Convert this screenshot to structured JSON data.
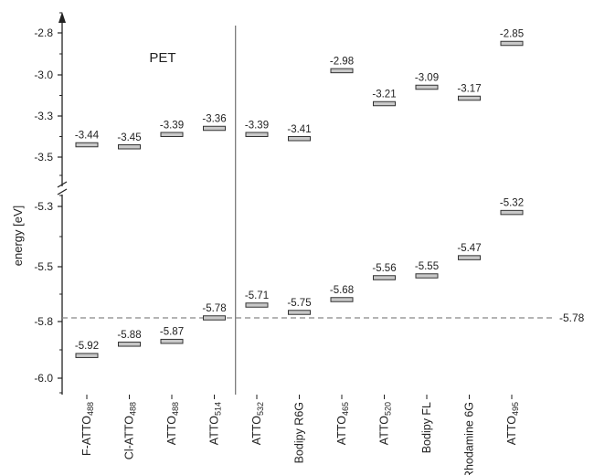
{
  "chart_data": {
    "type": "energy-level",
    "ylabel": "energy [eV]",
    "annotation": "PET",
    "reference_line": {
      "value": -5.78,
      "label": "-5.78"
    },
    "yaxis_segments": [
      {
        "range": [
          -3.55,
          -2.72
        ],
        "ticks": [
          "-2.8",
          "-3.0",
          "-3.3",
          "-3.5"
        ],
        "tick_values": [
          -2.8,
          -3.0,
          -3.3,
          -3.5
        ]
      },
      {
        "range": [
          -6.08,
          -5.22
        ],
        "ticks": [
          "-5.3",
          "-5.5",
          "-5.8",
          "-6.0"
        ],
        "tick_values": [
          -5.3,
          -5.5,
          -5.8,
          -6.0
        ]
      }
    ],
    "categories": [
      {
        "name": "F-ATTO",
        "sub": "488",
        "upper": -3.44,
        "lower": -5.92,
        "upper_label": "-3.44",
        "lower_label": "-5.92"
      },
      {
        "name": "Cl-ATTO",
        "sub": "488",
        "upper": -3.45,
        "lower": -5.88,
        "upper_label": "-3.45",
        "lower_label": "-5.88"
      },
      {
        "name": "ATTO",
        "sub": "488",
        "upper": -3.39,
        "lower": -5.87,
        "upper_label": "-3.39",
        "lower_label": "-5.87"
      },
      {
        "name": "ATTO",
        "sub": "514",
        "upper": -3.36,
        "lower": -5.78,
        "upper_label": "-3.36",
        "lower_label": "-5.78"
      },
      {
        "name": "ATTO",
        "sub": "532",
        "upper": -3.39,
        "lower": -5.71,
        "upper_label": "-3.39",
        "lower_label": "-5.71"
      },
      {
        "name": "Bodipy R6G",
        "sub": "",
        "upper": -3.41,
        "lower": -5.75,
        "upper_label": "-3.41",
        "lower_label": "-5.75"
      },
      {
        "name": "ATTO",
        "sub": "465",
        "upper": -2.98,
        "lower": -5.68,
        "upper_label": "-2.98",
        "lower_label": "-5.68"
      },
      {
        "name": "ATTO",
        "sub": "520",
        "upper": -3.21,
        "lower": -5.56,
        "upper_label": "-3.21",
        "lower_label": "-5.56"
      },
      {
        "name": "Bodipy FL",
        "sub": "",
        "upper": -3.09,
        "lower": -5.55,
        "upper_label": "-3.09",
        "lower_label": "-5.55"
      },
      {
        "name": "Rhodamine 6G",
        "sub": "",
        "upper": -3.17,
        "lower": -5.47,
        "upper_label": "-3.17",
        "lower_label": "-5.47"
      },
      {
        "name": "ATTO",
        "sub": "495",
        "upper": -2.85,
        "lower": -5.32,
        "upper_label": "-2.85",
        "lower_label": "-5.32"
      }
    ],
    "colors": {
      "level_fill": "#c8c8c8",
      "level_stroke": "#333333",
      "axis": "#222222",
      "reference_line": "#888888",
      "separator": "#555555"
    }
  }
}
